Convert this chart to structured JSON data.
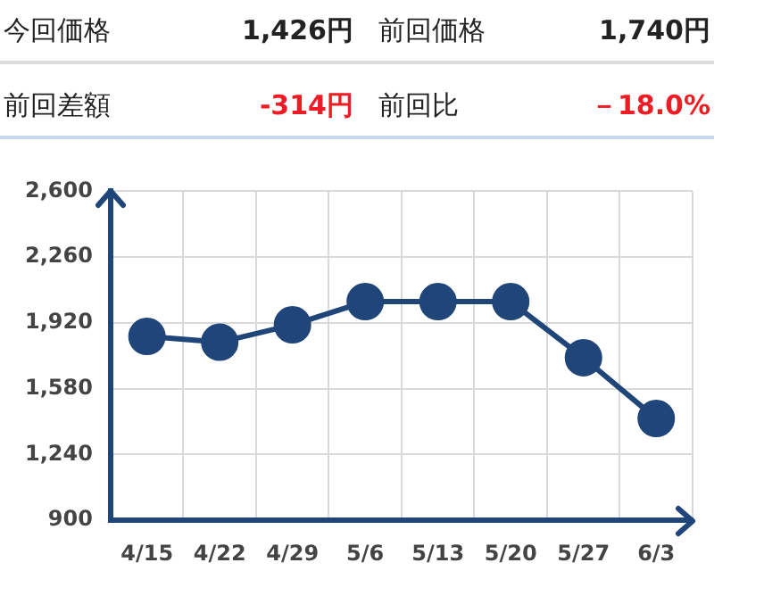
{
  "chart_data": {
    "type": "line",
    "annotations": [
      "今回価格",
      "1,426円",
      "前回価格",
      "1,740円",
      "前回差額",
      "-314円",
      "前回比",
      "－18.0%"
    ],
    "categories": [
      "4/15",
      "4/22",
      "4/29",
      "5/6",
      "5/13",
      "5/20",
      "5/27",
      "6/3"
    ],
    "series": [
      {
        "color": "#1f4579",
        "values": [
          1850,
          1820,
          1910,
          2030,
          2030,
          2030,
          1740,
          1426
        ]
      }
    ],
    "ylim": [
      900,
      2600
    ],
    "yticks": [
      {
        "value": 900,
        "label": "900"
      },
      {
        "value": 1240,
        "label": "1,240"
      },
      {
        "value": 1580,
        "label": "1,580"
      },
      {
        "value": 1920,
        "label": "1,920"
      },
      {
        "value": 2260,
        "label": "2,260"
      },
      {
        "value": 2600,
        "label": "2,600"
      }
    ],
    "grid": true,
    "marker": "circle",
    "line_style": "solid",
    "legend": false
  }
}
